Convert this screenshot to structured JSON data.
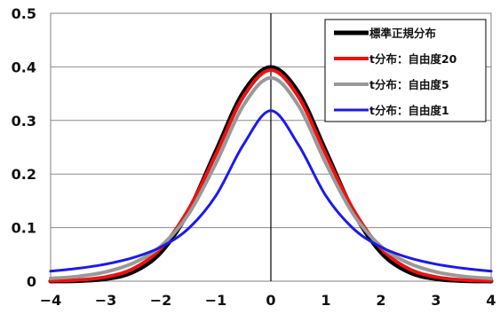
{
  "chart_data": {
    "type": "line",
    "title": "",
    "xlabel": "",
    "ylabel": "",
    "xlim": [
      -4,
      4
    ],
    "ylim": [
      0,
      0.5
    ],
    "x_ticks": [
      "−4",
      "−3",
      "−2",
      "−1",
      "0",
      "1",
      "2",
      "3",
      "4"
    ],
    "y_ticks": [
      "0",
      "0.1",
      "0.2",
      "0.3",
      "0.4",
      "0.5"
    ],
    "grid": "horizontal",
    "legend_position": "top-right",
    "series": [
      {
        "name": "標準正規分布",
        "color": "#000000",
        "x": [
          -4,
          -3.5,
          -3,
          -2.5,
          -2,
          -1.5,
          -1,
          -0.5,
          0,
          0.5,
          1,
          1.5,
          2,
          2.5,
          3,
          3.5,
          4
        ],
        "values": [
          0.0001,
          0.0009,
          0.0044,
          0.0175,
          0.054,
          0.1295,
          0.242,
          0.3521,
          0.3989,
          0.3521,
          0.242,
          0.1295,
          0.054,
          0.0175,
          0.0044,
          0.0009,
          0.0001
        ]
      },
      {
        "name": "t分布：自由度20",
        "color": "#ee1111",
        "x": [
          -4,
          -3.5,
          -3,
          -2.5,
          -2,
          -1.5,
          -1,
          -0.5,
          0,
          0.5,
          1,
          1.5,
          2,
          2.5,
          3,
          3.5,
          4
        ],
        "values": [
          0.0006,
          0.0022,
          0.0077,
          0.0233,
          0.0611,
          0.1332,
          0.236,
          0.3442,
          0.394,
          0.3442,
          0.236,
          0.1332,
          0.0611,
          0.0233,
          0.0077,
          0.0022,
          0.0006
        ]
      },
      {
        "name": "t分布：自由度5",
        "color": "#999999",
        "x": [
          -4,
          -3.5,
          -3,
          -2.5,
          -2,
          -1.5,
          -1,
          -0.5,
          0,
          0.5,
          1,
          1.5,
          2,
          2.5,
          3,
          3.5,
          4
        ],
        "values": [
          0.0051,
          0.009,
          0.0173,
          0.0338,
          0.0651,
          0.1245,
          0.2197,
          0.3279,
          0.3796,
          0.3279,
          0.2197,
          0.1245,
          0.0651,
          0.0338,
          0.0173,
          0.009,
          0.0051
        ]
      },
      {
        "name": "t分布：自由度1",
        "color": "#1a1aee",
        "x": [
          -4,
          -3.5,
          -3,
          -2.5,
          -2,
          -1.5,
          -1,
          -0.5,
          0,
          0.5,
          1,
          1.5,
          2,
          2.5,
          3,
          3.5,
          4
        ],
        "values": [
          0.0187,
          0.024,
          0.0318,
          0.0439,
          0.0637,
          0.0979,
          0.1592,
          0.2546,
          0.3183,
          0.2546,
          0.1592,
          0.0979,
          0.0637,
          0.0439,
          0.0318,
          0.024,
          0.0187
        ]
      }
    ]
  }
}
